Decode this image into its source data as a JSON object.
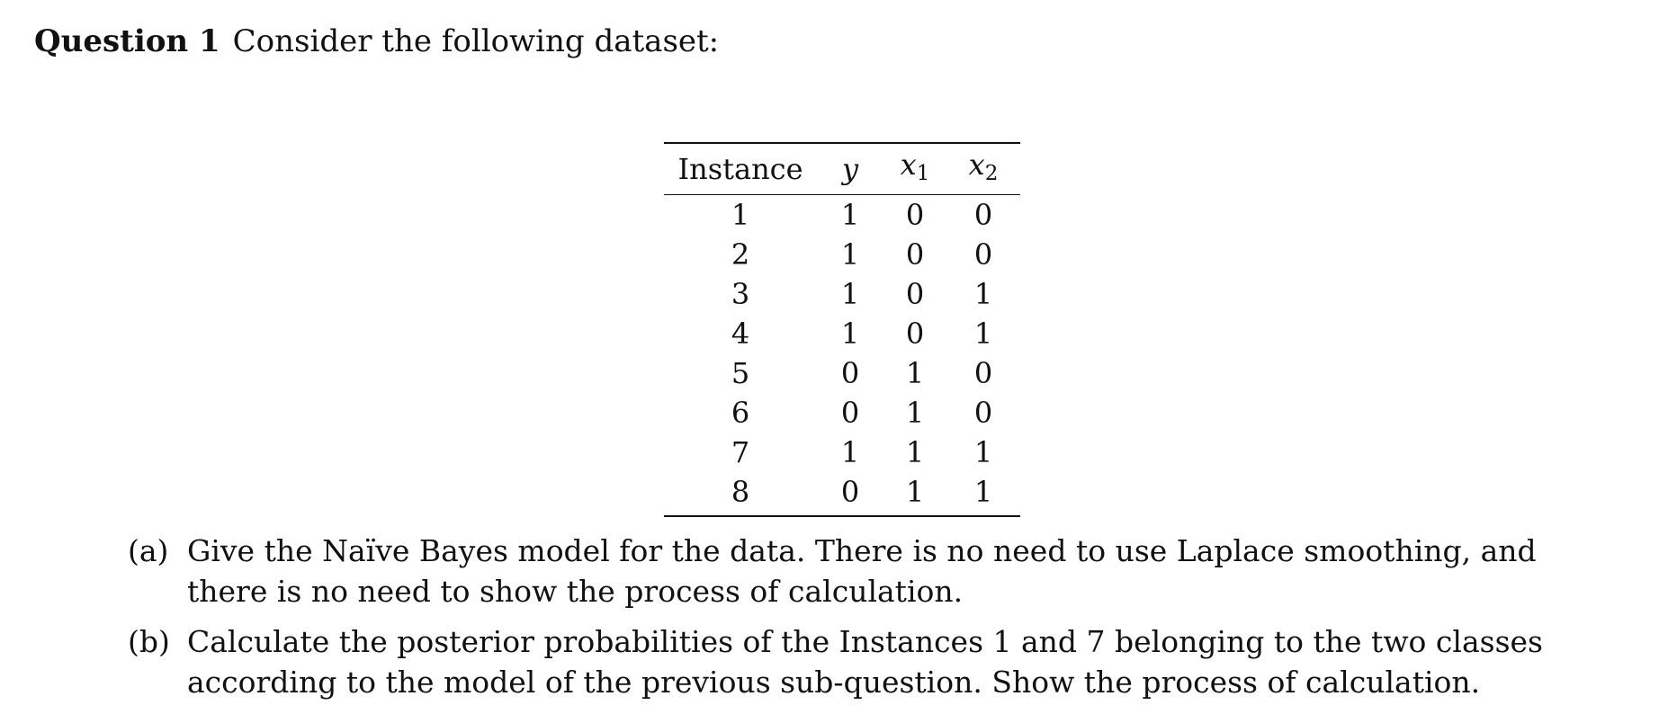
{
  "question": {
    "label": "Question 1",
    "prompt": "Consider the following dataset:"
  },
  "table": {
    "headers": {
      "instance": "Instance",
      "y": "y",
      "x1_var": "x",
      "x1_sub": "1",
      "x2_var": "x",
      "x2_sub": "2"
    },
    "rows": [
      {
        "instance": "1",
        "y": "1",
        "x1": "0",
        "x2": "0"
      },
      {
        "instance": "2",
        "y": "1",
        "x1": "0",
        "x2": "0"
      },
      {
        "instance": "3",
        "y": "1",
        "x1": "0",
        "x2": "1"
      },
      {
        "instance": "4",
        "y": "1",
        "x1": "0",
        "x2": "1"
      },
      {
        "instance": "5",
        "y": "0",
        "x1": "1",
        "x2": "0"
      },
      {
        "instance": "6",
        "y": "0",
        "x1": "1",
        "x2": "0"
      },
      {
        "instance": "7",
        "y": "1",
        "x1": "1",
        "x2": "1"
      },
      {
        "instance": "8",
        "y": "0",
        "x1": "1",
        "x2": "1"
      }
    ]
  },
  "subquestions": [
    {
      "marker": "(a)",
      "text": "Give the Naïve Bayes model for the data. There is no need to use Laplace smoothing, and there is no need to show the process of calculation."
    },
    {
      "marker": "(b)",
      "text": "Calculate the posterior probabilities of the Instances 1 and 7 belonging to the two classes according to the model of the previous sub-question. Show the process of calculation."
    }
  ]
}
